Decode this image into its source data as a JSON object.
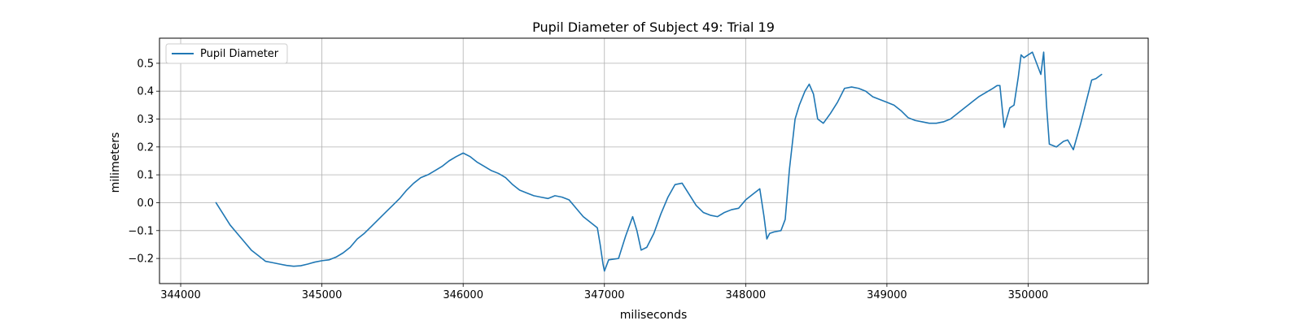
{
  "chart_data": {
    "type": "line",
    "title": "Pupil Diameter of Subject 49: Trial 19",
    "xlabel": "miliseconds",
    "ylabel": "milimeters",
    "xlim": [
      343850,
      350850
    ],
    "ylim": [
      -0.29,
      0.59
    ],
    "xticks": [
      344000,
      345000,
      346000,
      347000,
      348000,
      349000,
      350000
    ],
    "yticks": [
      -0.2,
      -0.1,
      0.0,
      0.1,
      0.2,
      0.3,
      0.4,
      0.5
    ],
    "grid": true,
    "legend_position": "top-left",
    "series": [
      {
        "name": "Pupil Diameter",
        "color": "#1f77b4",
        "x": [
          344250,
          344300,
          344350,
          344400,
          344450,
          344500,
          344550,
          344600,
          344650,
          344700,
          344750,
          344800,
          344850,
          344900,
          344950,
          345000,
          345050,
          345100,
          345150,
          345200,
          345250,
          345300,
          345350,
          345400,
          345450,
          345500,
          345550,
          345600,
          345650,
          345700,
          345750,
          345800,
          345850,
          345900,
          345950,
          346000,
          346050,
          346100,
          346150,
          346200,
          346250,
          346300,
          346350,
          346400,
          346450,
          346500,
          346550,
          346600,
          346650,
          346700,
          346750,
          346800,
          346850,
          346900,
          346950,
          346970,
          346990,
          347000,
          347030,
          347100,
          347150,
          347200,
          347230,
          347260,
          347300,
          347350,
          347400,
          347450,
          347500,
          347550,
          347600,
          347650,
          347700,
          347750,
          347800,
          347850,
          347900,
          347950,
          348000,
          348050,
          348100,
          348130,
          348150,
          348170,
          348200,
          348250,
          348280,
          348310,
          348350,
          348380,
          348420,
          348450,
          348480,
          348510,
          348550,
          348600,
          348650,
          348700,
          348750,
          348800,
          348850,
          348900,
          348950,
          349000,
          349050,
          349100,
          349150,
          349200,
          349250,
          349300,
          349350,
          349400,
          349450,
          349500,
          349550,
          349600,
          349650,
          349700,
          349750,
          349780,
          349800,
          349830,
          349870,
          349900,
          349930,
          349950,
          349970,
          350000,
          350030,
          350060,
          350090,
          350110,
          350130,
          350150,
          350200,
          350250,
          350280,
          350320,
          350370,
          350420,
          350450,
          350480,
          350520
        ],
        "y": [
          0.0,
          -0.04,
          -0.08,
          -0.11,
          -0.14,
          -0.17,
          -0.19,
          -0.21,
          -0.215,
          -0.22,
          -0.225,
          -0.228,
          -0.226,
          -0.22,
          -0.213,
          -0.208,
          -0.205,
          -0.195,
          -0.18,
          -0.16,
          -0.13,
          -0.11,
          -0.085,
          -0.06,
          -0.035,
          -0.01,
          0.015,
          0.045,
          0.07,
          0.09,
          0.1,
          0.115,
          0.13,
          0.15,
          0.165,
          0.178,
          0.165,
          0.145,
          0.13,
          0.115,
          0.105,
          0.09,
          0.065,
          0.045,
          0.035,
          0.025,
          0.02,
          0.015,
          0.025,
          0.02,
          0.01,
          -0.02,
          -0.05,
          -0.07,
          -0.09,
          -0.15,
          -0.22,
          -0.245,
          -0.205,
          -0.2,
          -0.12,
          -0.05,
          -0.1,
          -0.17,
          -0.16,
          -0.11,
          -0.04,
          0.02,
          0.065,
          0.07,
          0.03,
          -0.01,
          -0.035,
          -0.045,
          -0.05,
          -0.035,
          -0.025,
          -0.02,
          0.01,
          0.03,
          0.05,
          -0.05,
          -0.13,
          -0.11,
          -0.105,
          -0.1,
          -0.06,
          0.12,
          0.3,
          0.35,
          0.4,
          0.425,
          0.39,
          0.3,
          0.285,
          0.32,
          0.36,
          0.41,
          0.415,
          0.41,
          0.4,
          0.38,
          0.37,
          0.36,
          0.35,
          0.33,
          0.305,
          0.295,
          0.29,
          0.285,
          0.285,
          0.29,
          0.3,
          0.32,
          0.34,
          0.36,
          0.38,
          0.395,
          0.41,
          0.42,
          0.42,
          0.27,
          0.34,
          0.35,
          0.45,
          0.53,
          0.52,
          0.53,
          0.54,
          0.5,
          0.46,
          0.54,
          0.35,
          0.21,
          0.2,
          0.22,
          0.225,
          0.19,
          0.28,
          0.38,
          0.44,
          0.445,
          0.46
        ]
      }
    ]
  }
}
